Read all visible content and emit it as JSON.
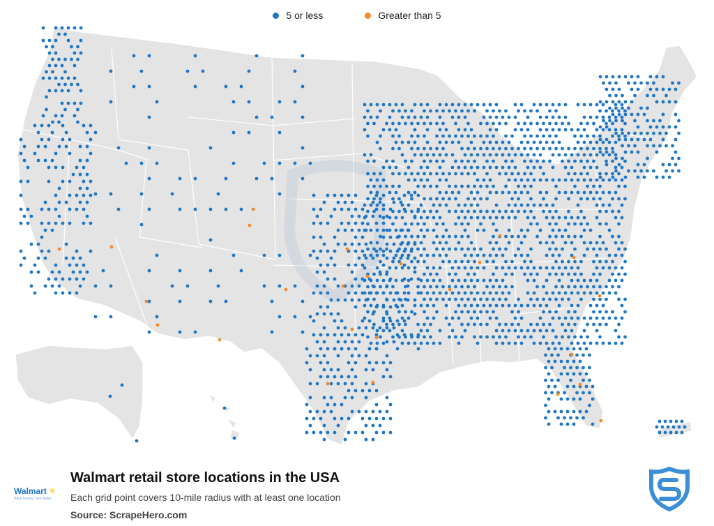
{
  "legend": {
    "items": [
      {
        "label": "5 or less",
        "color": "#1f77c4"
      },
      {
        "label": "Greater than 5",
        "color": "#f28a2a"
      }
    ]
  },
  "map": {
    "land_color": "#e4e4e4",
    "border_color": "#ffffff",
    "watermark": "shield-s-logo"
  },
  "footer": {
    "title": "Walmart retail store locations in the USA",
    "subtitle": "Each grid point covers 10-mile radius with at least one location",
    "source": "Source: ScrapeHero.com",
    "brand_logo_text": "Walmart",
    "brand_logo_tagline": "Save money. Live better."
  },
  "brand_color": "#3b8ed8",
  "icons": [
    "walmart-spark-icon",
    "scrapehero-shield-icon"
  ]
}
